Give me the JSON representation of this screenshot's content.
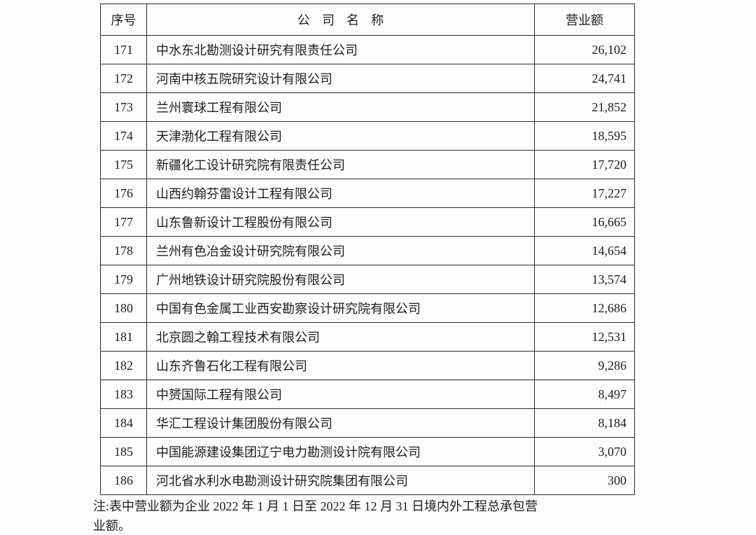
{
  "table": {
    "headers": {
      "index": "序号",
      "company": "公 司 名 称",
      "revenue": "营业额"
    },
    "rows": [
      {
        "index": "171",
        "company": "中水东北勘测设计研究有限责任公司",
        "revenue": "26,102"
      },
      {
        "index": "172",
        "company": "河南中核五院研究设计有限公司",
        "revenue": "24,741"
      },
      {
        "index": "173",
        "company": "兰州寰球工程有限公司",
        "revenue": "21,852"
      },
      {
        "index": "174",
        "company": "天津渤化工程有限公司",
        "revenue": "18,595"
      },
      {
        "index": "175",
        "company": "新疆化工设计研究院有限责任公司",
        "revenue": "17,720"
      },
      {
        "index": "176",
        "company": "山西约翰芬雷设计工程有限公司",
        "revenue": "17,227"
      },
      {
        "index": "177",
        "company": "山东鲁新设计工程股份有限公司",
        "revenue": "16,665"
      },
      {
        "index": "178",
        "company": "兰州有色冶金设计研究院有限公司",
        "revenue": "14,654"
      },
      {
        "index": "179",
        "company": "广州地铁设计研究院股份有限公司",
        "revenue": "13,574"
      },
      {
        "index": "180",
        "company": "中国有色金属工业西安勘察设计研究院有限公司",
        "revenue": "12,686"
      },
      {
        "index": "181",
        "company": "北京圆之翰工程技术有限公司",
        "revenue": "12,531"
      },
      {
        "index": "182",
        "company": "山东齐鲁石化工程有限公司",
        "revenue": "9,286"
      },
      {
        "index": "183",
        "company": "中赟国际工程有限公司",
        "revenue": "8,497"
      },
      {
        "index": "184",
        "company": "华汇工程设计集团股份有限公司",
        "revenue": "8,184"
      },
      {
        "index": "185",
        "company": "中国能源建设集团辽宁电力勘测设计院有限公司",
        "revenue": "3,070"
      },
      {
        "index": "186",
        "company": "河北省水利水电勘测设计研究院集团有限公司",
        "revenue": "300"
      }
    ]
  },
  "note": {
    "line1": "注:表中营业额为企业 2022 年 1 月 1 日至 2022 年 12 月 31 日境内外工程总承包营",
    "line2": "业额。"
  }
}
